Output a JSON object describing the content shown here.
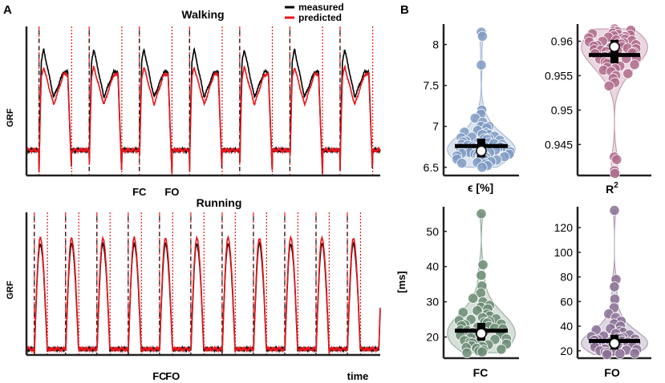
{
  "panel_labels": {
    "a": "A",
    "b": "B"
  },
  "legend": {
    "items": [
      {
        "label": "measured",
        "color": "#000000"
      },
      {
        "label": "predicted",
        "color": "#e8151b"
      }
    ]
  },
  "event_labels": {
    "fc": "FC",
    "fo": "FO",
    "time": "time"
  },
  "colors": {
    "measured": "#000000",
    "predicted": "#e8151b",
    "contact": "#e8151b",
    "off": "#e8151b"
  },
  "chart_data": [
    {
      "type": "line",
      "id": "walking",
      "title": "Walking",
      "ylabel": "GRF",
      "xlabel": "",
      "x_range": [
        0,
        7.05
      ],
      "y_range": [
        0,
        1.18
      ],
      "n_cycles": 7,
      "period": 1.0,
      "stance_fraction": 0.65,
      "series": [
        {
          "name": "measured",
          "peak1": 1.0,
          "valley": 0.62,
          "peak2": 0.82
        },
        {
          "name": "predicted",
          "peak1": 0.86,
          "valley": 0.56,
          "peak2": 0.8
        }
      ],
      "annotations": [
        {
          "text": "FC",
          "cycle": 2,
          "event": "contact"
        },
        {
          "text": "FO",
          "cycle": 2,
          "event": "off"
        }
      ]
    },
    {
      "type": "line",
      "id": "running",
      "title": "Running",
      "ylabel": "GRF",
      "xlabel": "time",
      "x_range": [
        0,
        11.3
      ],
      "y_range": [
        0,
        1.22
      ],
      "n_cycles": 11,
      "period": 1.0,
      "stance_fraction": 0.42,
      "series": [
        {
          "name": "measured",
          "peak": 0.95
        },
        {
          "name": "predicted",
          "peak": 1.0
        }
      ],
      "annotations": [
        {
          "text": "FC",
          "cycle": 4,
          "event": "contact"
        },
        {
          "text": "FO",
          "cycle": 4,
          "event": "off"
        }
      ]
    },
    {
      "type": "violin",
      "id": "epsilon",
      "xlabel": "ϵ [%]",
      "ylabel": "",
      "color": "#7f9bc3",
      "ylim": [
        6.4,
        8.25
      ],
      "yticks": [
        6.5,
        7,
        7.5,
        8
      ],
      "tick_labels": [
        "6.5",
        "7",
        "7.5",
        "8"
      ],
      "median": 6.7,
      "mean": 6.76,
      "q1": 6.62,
      "q3": 6.85,
      "samples": [
        8.15,
        8.1,
        7.75,
        7.2,
        7.15,
        7.1,
        7.05,
        7.0,
        7.0,
        6.98,
        6.95,
        6.93,
        6.92,
        6.9,
        6.9,
        6.88,
        6.87,
        6.86,
        6.85,
        6.85,
        6.84,
        6.83,
        6.82,
        6.81,
        6.8,
        6.8,
        6.79,
        6.78,
        6.78,
        6.77,
        6.76,
        6.76,
        6.75,
        6.75,
        6.74,
        6.74,
        6.73,
        6.72,
        6.72,
        6.71,
        6.71,
        6.7,
        6.7,
        6.69,
        6.69,
        6.68,
        6.68,
        6.67,
        6.67,
        6.66,
        6.66,
        6.65,
        6.65,
        6.64,
        6.64,
        6.63,
        6.63,
        6.62,
        6.62,
        6.61,
        6.6,
        6.6,
        6.59,
        6.58,
        6.57,
        6.56,
        6.55,
        6.54,
        6.52,
        6.5
      ]
    },
    {
      "type": "violin",
      "id": "r2",
      "xlabel": "R",
      "xlabel_sup": "2",
      "ylabel": "",
      "color": "#b06c8c",
      "ylim": [
        0.9405,
        0.9625
      ],
      "yticks": [
        0.945,
        0.95,
        0.955,
        0.96
      ],
      "tick_labels": [
        "0.945",
        "0.95",
        "0.955",
        "0.96"
      ],
      "median": 0.9592,
      "mean": 0.958,
      "q1": 0.9568,
      "q3": 0.9602,
      "samples": [
        0.9618,
        0.9616,
        0.9615,
        0.9614,
        0.9612,
        0.9611,
        0.961,
        0.9609,
        0.9608,
        0.9607,
        0.9606,
        0.9605,
        0.9604,
        0.9603,
        0.9602,
        0.9601,
        0.96,
        0.9599,
        0.9598,
        0.9597,
        0.9596,
        0.9595,
        0.9594,
        0.9593,
        0.9592,
        0.9591,
        0.959,
        0.9589,
        0.9588,
        0.9587,
        0.9586,
        0.9585,
        0.9584,
        0.9583,
        0.9582,
        0.958,
        0.9579,
        0.9578,
        0.9576,
        0.9575,
        0.9574,
        0.9572,
        0.957,
        0.9568,
        0.9566,
        0.9564,
        0.9562,
        0.956,
        0.9558,
        0.9556,
        0.9553,
        0.955,
        0.9546,
        0.954,
        0.9535,
        0.9432,
        0.9428,
        0.9412,
        0.9408
      ]
    },
    {
      "type": "violin",
      "id": "fc",
      "xlabel": "FC",
      "ylabel": "[ms]",
      "color": "#6b8c74",
      "ylim": [
        14,
        57
      ],
      "yticks": [
        20,
        30,
        40,
        50
      ],
      "tick_labels": [
        "20",
        "30",
        "40",
        "50"
      ],
      "median": 21,
      "mean": 21.8,
      "q1": 19,
      "q3": 24,
      "samples": [
        55,
        40.5,
        37.5,
        34.5,
        32.5,
        31,
        30,
        29,
        28.5,
        28,
        27.5,
        27,
        26.5,
        26,
        25.5,
        25.2,
        25,
        24.7,
        24.5,
        24.2,
        24,
        23.7,
        23.5,
        23.2,
        23,
        22.8,
        22.5,
        22.3,
        22,
        21.8,
        21.5,
        21.3,
        21,
        20.8,
        20.5,
        20.3,
        20,
        19.8,
        19.5,
        19.3,
        19,
        18.8,
        18.5,
        18.3,
        18,
        17.8,
        17.5,
        17.3,
        17,
        16.8,
        16.5,
        16.3,
        16,
        15.8,
        15.5
      ]
    },
    {
      "type": "violin",
      "id": "fo",
      "xlabel": "FO",
      "ylabel": "",
      "color": "#8a7094",
      "ylim": [
        14,
        137
      ],
      "yticks": [
        20,
        40,
        60,
        80,
        100,
        120
      ],
      "tick_labels": [
        "20",
        "40",
        "60",
        "80",
        "100",
        "120"
      ],
      "median": 26,
      "mean": 28,
      "q1": 21,
      "q3": 33,
      "samples": [
        134,
        78,
        72,
        62,
        55,
        50,
        47,
        44,
        42,
        40,
        38,
        37,
        36,
        35,
        34,
        33,
        32,
        31.5,
        31,
        30.5,
        30,
        29.5,
        29,
        28.5,
        28,
        27.5,
        27,
        26.5,
        26,
        25.5,
        25,
        24.5,
        24,
        23.5,
        23,
        22.5,
        22,
        21.5,
        21,
        20.5,
        20,
        19.5,
        19,
        18.5,
        18,
        17.5,
        17
      ]
    }
  ]
}
